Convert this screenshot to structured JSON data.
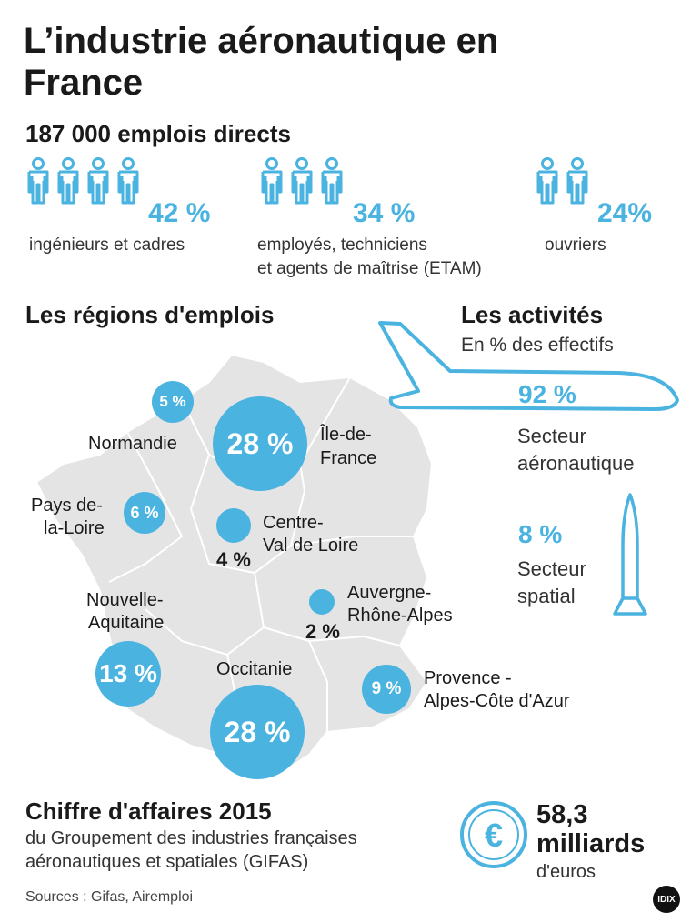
{
  "title": "L’industrie aéronautique en France",
  "jobs": {
    "total_label": "187 000 emplois directs",
    "groups": [
      {
        "pct": "42 %",
        "label": "ingénieurs et cadres",
        "icons": 4
      },
      {
        "pct": "34 %",
        "label_line1": "employés, techniciens",
        "label_line2": "et agents de maîtrise (ETAM)",
        "icons": 3
      },
      {
        "pct": "24%",
        "label": "ouvriers",
        "icons": 2
      }
    ]
  },
  "regions": {
    "heading": "Les régions d'emplois",
    "items": [
      {
        "name": "Normandie",
        "pct": "5 %"
      },
      {
        "name_line1": "Île-de-",
        "name_line2": "France",
        "pct": "28 %"
      },
      {
        "name_line1": "Pays de-",
        "name_line2": "la-Loire",
        "pct": "6 %"
      },
      {
        "name_line1": "Centre-",
        "name_line2": "Val de Loire",
        "pct": "4 %"
      },
      {
        "name_line1": "Auvergne-",
        "name_line2": "Rhône-Alpes",
        "pct": "2 %"
      },
      {
        "name_line1": "Nouvelle-",
        "name_line2": "Aquitaine",
        "pct": "13 %"
      },
      {
        "name": "Occitanie",
        "pct": "28 %"
      },
      {
        "name_line1": "Provence -",
        "name_line2": "Alpes-Côte d'Azur",
        "pct": "9 %"
      }
    ]
  },
  "activities": {
    "heading": "Les activités",
    "subheading": "En % des effectifs",
    "aero_pct": "92 %",
    "aero_line1": "Secteur",
    "aero_line2": "aéronautique",
    "space_pct": "8 %",
    "space_line1": "Secteur",
    "space_line2": "spatial"
  },
  "revenue": {
    "heading": "Chiffre d'affaires 2015",
    "line1": "du Groupement des industries françaises",
    "line2": "aéronautiques et spatiales (GIFAS)",
    "value": "58,3",
    "unit": "milliards",
    "currency": "d'euros",
    "icon": "euro-coin-icon"
  },
  "sources": "Sources : Gifas, Airemploi",
  "logo": "IDIX",
  "colors": {
    "accent": "#4ab3e0",
    "map": "#e4e4e4"
  },
  "chart_data": [
    {
      "type": "bar",
      "title": "187 000 emplois directs",
      "categories": [
        "ingénieurs et cadres",
        "employés, techniciens et agents de maîtrise (ETAM)",
        "ouvriers"
      ],
      "values": [
        42,
        34,
        24
      ],
      "unit": "%"
    },
    {
      "type": "bubble",
      "title": "Les régions d'emplois",
      "categories": [
        "Normandie",
        "Île-de-France",
        "Pays de-la-Loire",
        "Centre-Val de Loire",
        "Auvergne-Rhône-Alpes",
        "Nouvelle-Aquitaine",
        "Occitanie",
        "Provence - Alpes-Côte d'Azur"
      ],
      "values": [
        5,
        28,
        6,
        4,
        2,
        13,
        28,
        9
      ],
      "unit": "%"
    },
    {
      "type": "pie",
      "title": "Les activités",
      "subtitle": "En % des effectifs",
      "categories": [
        "Secteur aéronautique",
        "Secteur spatial"
      ],
      "values": [
        92,
        8
      ],
      "unit": "%"
    }
  ]
}
